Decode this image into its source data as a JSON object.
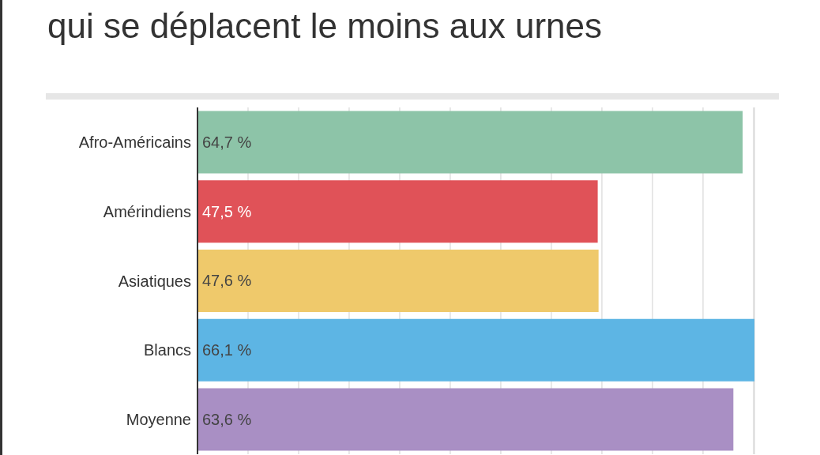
{
  "chart_data": {
    "type": "bar",
    "orientation": "horizontal",
    "title": "qui se déplacent le moins aux urnes",
    "categories": [
      "Afro-Américains",
      "Amérindiens",
      "Asiatiques",
      "Blancs",
      "Moyenne"
    ],
    "values": [
      64.7,
      47.5,
      47.6,
      66.1,
      63.6
    ],
    "colors": [
      "#8dc4a8",
      "#e05258",
      "#efc96b",
      "#5db5e4",
      "#a98fc4"
    ],
    "value_labels": [
      "64,7 %",
      "47,5 %",
      "47,6 %",
      "66,1 %",
      "63,6 %"
    ],
    "grid": "x",
    "tick_labels": "y"
  }
}
